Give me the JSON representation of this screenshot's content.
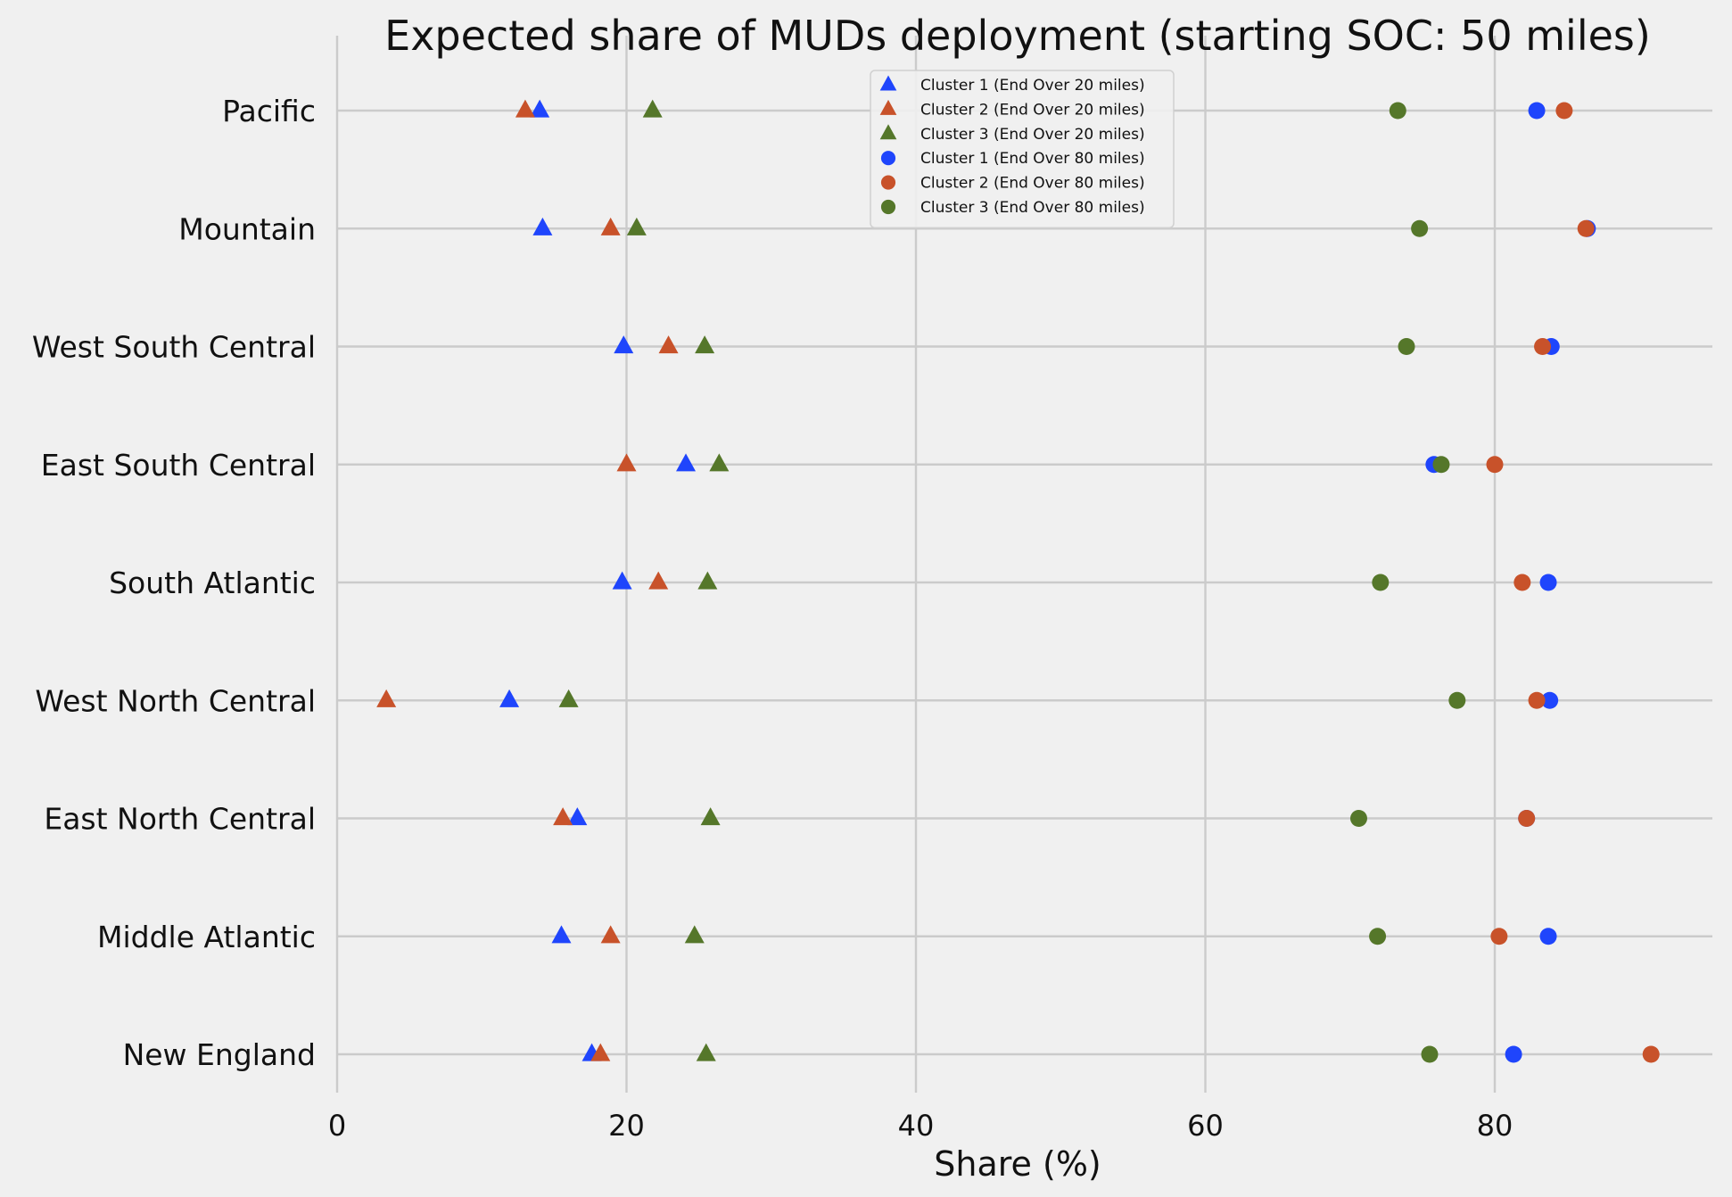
{
  "chart_data": {
    "type": "scatter",
    "title": "Expected share of MUDs deployment (starting SOC: 50 miles)",
    "xlabel": "Share (%)",
    "ylabel": "",
    "xlim": [
      0,
      95
    ],
    "xticks": [
      0,
      20,
      40,
      60,
      80
    ],
    "grid": true,
    "legend_position": "top-center",
    "categories": [
      "Pacific",
      "Mountain",
      "West South Central",
      "East South Central",
      "South Atlantic",
      "West North Central",
      "East North Central",
      "Middle Atlantic",
      "New England"
    ],
    "series": [
      {
        "name": "Cluster 1 (End Over 20 miles)",
        "marker": "triangle",
        "color": "#1f45fc",
        "values": [
          14.0,
          14.2,
          19.8,
          24.1,
          19.7,
          11.9,
          16.6,
          15.5,
          17.6
        ]
      },
      {
        "name": "Cluster 2 (End Over 20 miles)",
        "marker": "triangle",
        "color": "#c8522a",
        "values": [
          13.0,
          18.9,
          22.9,
          20.0,
          22.2,
          3.4,
          15.6,
          18.9,
          18.2
        ]
      },
      {
        "name": "Cluster 3 (End Over 20 miles)",
        "marker": "triangle",
        "color": "#55772a",
        "values": [
          21.8,
          20.7,
          25.4,
          26.4,
          25.6,
          16.0,
          25.8,
          24.7,
          25.5
        ]
      },
      {
        "name": "Cluster 1 (End Over 80 miles)",
        "marker": "circle",
        "color": "#1f45fc",
        "values": [
          82.9,
          86.4,
          83.9,
          75.8,
          83.7,
          83.8,
          82.2,
          83.7,
          81.3
        ]
      },
      {
        "name": "Cluster 2 (End Over 80 miles)",
        "marker": "circle",
        "color": "#c8522a",
        "values": [
          84.8,
          86.3,
          83.3,
          80.0,
          81.9,
          82.9,
          82.2,
          80.3,
          90.8
        ]
      },
      {
        "name": "Cluster 3 (End Over 80 miles)",
        "marker": "circle",
        "color": "#55772a",
        "values": [
          73.3,
          74.8,
          73.9,
          76.3,
          72.1,
          77.4,
          70.6,
          71.9,
          75.5
        ]
      }
    ]
  }
}
